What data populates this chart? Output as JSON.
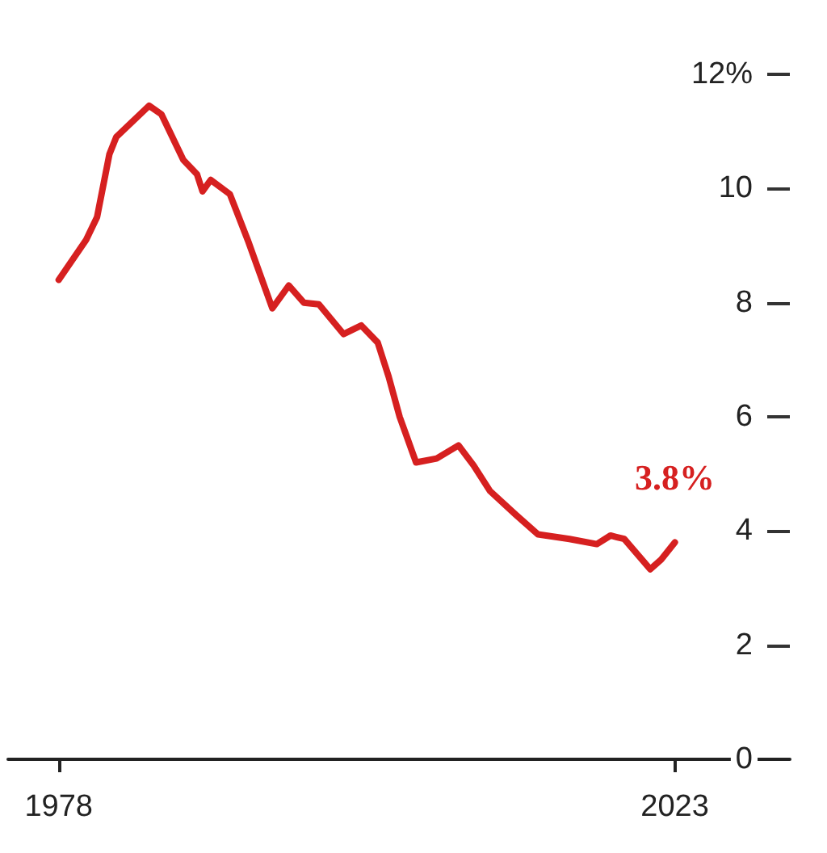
{
  "chart_data": {
    "type": "line",
    "x": [
      1978,
      1980,
      1980.8,
      1981.7,
      1982.2,
      1983.5,
      1984.6,
      1985.5,
      1987.1,
      1988.1,
      1988.5,
      1989.1,
      1990.5,
      1991.8,
      1993.6,
      1994.8,
      1995.9,
      1997,
      1998.8,
      2000.1,
      2001.3,
      2002.1,
      2002.9,
      2004.1,
      2005.6,
      2007.2,
      2008.3,
      2009.5,
      2011.4,
      2013,
      2015.3,
      2017.3,
      2018.3,
      2019.3,
      2021.2,
      2022,
      2023
    ],
    "series": [
      {
        "color": "#d62020",
        "values": [
          8.4,
          9.1,
          9.5,
          10.6,
          10.9,
          11.2,
          11.45,
          11.3,
          10.5,
          10.25,
          9.95,
          10.15,
          9.9,
          9.1,
          7.9,
          8.3,
          8.0,
          7.97,
          7.45,
          7.6,
          7.3,
          6.7,
          6.0,
          5.2,
          5.27,
          5.5,
          5.15,
          4.7,
          4.28,
          3.94,
          3.86,
          3.77,
          3.92,
          3.86,
          3.33,
          3.5,
          3.8
        ]
      }
    ],
    "xlim": [
      1974.3,
      2031.4
    ],
    "xticks": [
      1978,
      2023
    ],
    "ylim": [
      0,
      12
    ],
    "yticks": [
      0,
      2,
      4,
      6,
      8,
      10,
      {
        "value": 12,
        "label": "12%"
      }
    ],
    "annotations": [
      {
        "text": "3.8%",
        "x": 2023,
        "y": 3.8
      }
    ],
    "grid": false,
    "marker": "none",
    "line_style": "solid"
  }
}
